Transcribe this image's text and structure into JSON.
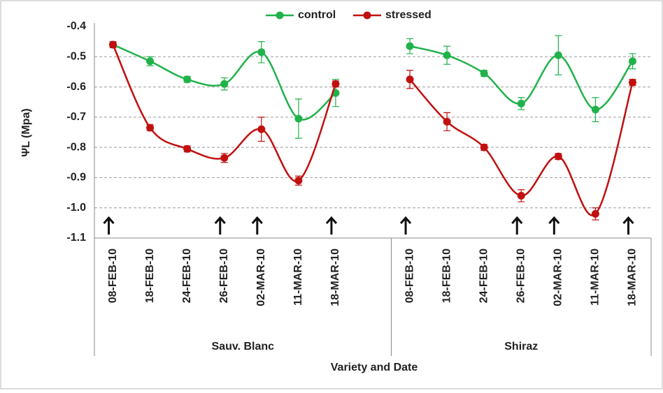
{
  "chart_data": {
    "type": "line",
    "ylabel": "ΨL (Mpa)",
    "xlabel": "Variety and Date",
    "groups": [
      "Sauv. Blanc",
      "Shiraz"
    ],
    "categories": [
      "08-FEB-10",
      "18-FEB-10",
      "24-FEB-10",
      "26-FEB-10",
      "02-MAR-10",
      "11-MAR-10",
      "18-MAR-10",
      null,
      "08-FEB-10",
      "18-FEB-10",
      "24-FEB-10",
      "26-FEB-10",
      "02-MAR-10",
      "11-MAR-10",
      "18-MAR-10"
    ],
    "series": [
      {
        "name": "control",
        "color": "#1fb24a",
        "values": [
          -0.46,
          -0.515,
          -0.575,
          -0.59,
          -0.485,
          -0.705,
          -0.62,
          null,
          -0.465,
          -0.495,
          -0.555,
          -0.655,
          -0.495,
          -0.675,
          -0.515
        ],
        "errors": [
          0.01,
          0.015,
          0.01,
          0.02,
          0.035,
          0.065,
          0.045,
          null,
          0.025,
          0.03,
          0.01,
          0.02,
          0.065,
          0.04,
          0.025
        ]
      },
      {
        "name": "stressed",
        "color": "#c0100f",
        "values": [
          -0.46,
          -0.735,
          -0.805,
          -0.835,
          -0.74,
          -0.91,
          -0.59,
          null,
          -0.575,
          -0.715,
          -0.8,
          -0.96,
          -0.83,
          -1.02,
          -0.585
        ],
        "errors": [
          0.01,
          0.01,
          0.01,
          0.015,
          0.04,
          0.015,
          0.01,
          null,
          0.03,
          0.03,
          0.01,
          0.02,
          0.01,
          0.02,
          0.01
        ]
      }
    ],
    "ylim": [
      -1.1,
      -0.4
    ],
    "yticks": [
      -0.4,
      -0.5,
      -0.6,
      -0.7,
      -0.8,
      -0.9,
      {
        "value": -1,
        "label": "-1.0"
      },
      -1.1
    ],
    "grid": true,
    "legend": "top"
  }
}
